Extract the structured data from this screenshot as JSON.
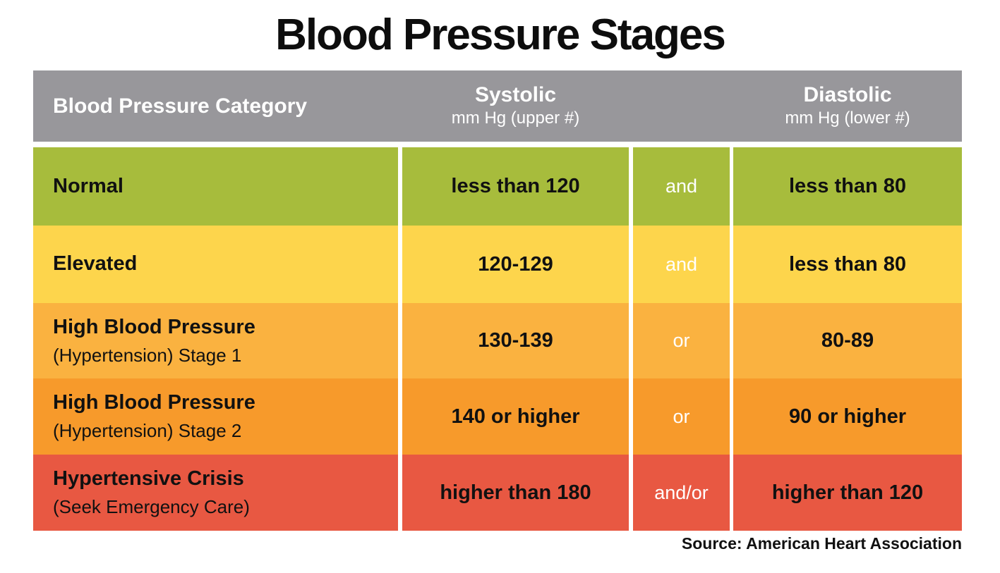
{
  "title": "Blood Pressure Stages",
  "source": "Source: American Heart Association",
  "colors": {
    "header_bg": "#98979b",
    "text": "#111111",
    "connector_text": "#ffffff",
    "row_normal": "#a7bc3c",
    "row_elevated": "#fdd54c",
    "row_stage1": "#fab240",
    "row_stage2": "#f79a2b",
    "row_crisis": "#e85842"
  },
  "header": {
    "category": "Blood Pressure Category",
    "systolic_title": "Systolic",
    "systolic_sub": "mm Hg (upper #)",
    "diastolic_title": "Diastolic",
    "diastolic_sub": "mm Hg (lower #)"
  },
  "rows": [
    {
      "category": "Normal",
      "category_sub": "",
      "systolic": "less than 120",
      "connector": "and",
      "diastolic": "less than 80",
      "color": "#a7bc3c"
    },
    {
      "category": "Elevated",
      "category_sub": "",
      "systolic": "120-129",
      "connector": "and",
      "diastolic": "less than 80",
      "color": "#fdd54c"
    },
    {
      "category": "High Blood Pressure",
      "category_sub": "(Hypertension) Stage 1",
      "systolic": "130-139",
      "connector": "or",
      "diastolic": "80-89",
      "color": "#fab240"
    },
    {
      "category": "High Blood Pressure",
      "category_sub": "(Hypertension) Stage 2",
      "systolic": "140 or higher",
      "connector": "or",
      "diastolic": "90 or higher",
      "color": "#f79a2b"
    },
    {
      "category": "Hypertensive Crisis",
      "category_sub": "(Seek Emergency Care)",
      "systolic": "higher than 180",
      "connector": "and/or",
      "diastolic": "higher than 120",
      "color": "#e85842"
    }
  ],
  "chart_data": {
    "type": "table",
    "title": "Blood Pressure Stages",
    "columns": [
      "Blood Pressure Category",
      "Systolic mm Hg (upper #)",
      "connector",
      "Diastolic mm Hg (lower #)"
    ],
    "rows": [
      [
        "Normal",
        "less than 120",
        "and",
        "less than 80"
      ],
      [
        "Elevated",
        "120-129",
        "and",
        "less than 80"
      ],
      [
        "High Blood Pressure (Hypertension) Stage 1",
        "130-139",
        "or",
        "80-89"
      ],
      [
        "High Blood Pressure (Hypertension) Stage 2",
        "140 or higher",
        "or",
        "90 or higher"
      ],
      [
        "Hypertensive Crisis (Seek Emergency Care)",
        "higher than 180",
        "and/or",
        "higher than 120"
      ]
    ],
    "source": "Source: American Heart Association"
  }
}
